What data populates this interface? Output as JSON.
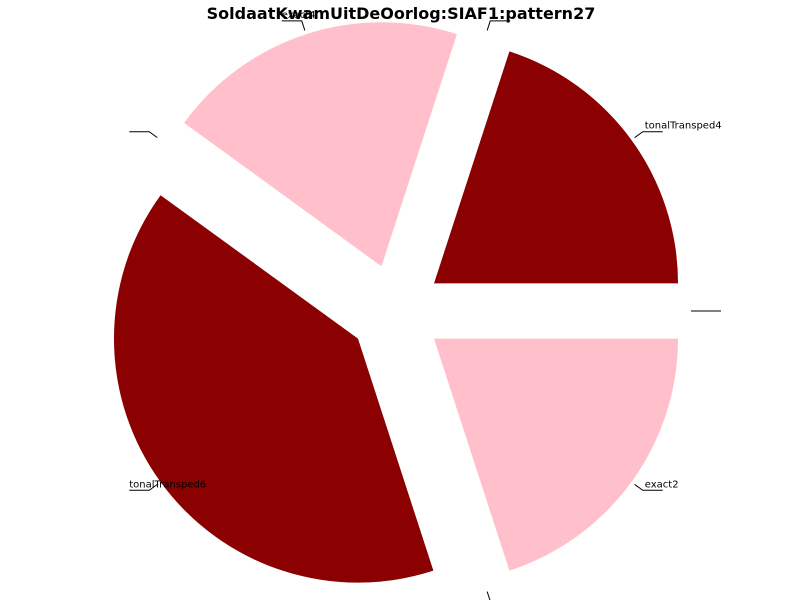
{
  "chart_data": {
    "type": "pie",
    "title": "SoldaatKwamUitDeOorlog:SIAF1:pattern27",
    "slices": [
      {
        "label": "exact2",
        "value": 20,
        "color": "#FFC0CB"
      },
      {
        "label": "",
        "value": 0,
        "color": "#FFFFFF"
      },
      {
        "label": "tonalTransped6",
        "value": 40,
        "color": "#8B0000"
      },
      {
        "label": "",
        "value": 0,
        "color": "#FFFFFF"
      },
      {
        "label": "exact4",
        "value": 20,
        "color": "#FFC0CB"
      },
      {
        "label": "",
        "value": 0,
        "color": "#FFFFFF"
      },
      {
        "label": "tonalTransped4",
        "value": 20,
        "color": "#8B0000"
      },
      {
        "label": "",
        "value": 0,
        "color": "#FFFFFF"
      }
    ],
    "start_angle_deg": 0,
    "direction": "clockwise",
    "legend": "none"
  }
}
